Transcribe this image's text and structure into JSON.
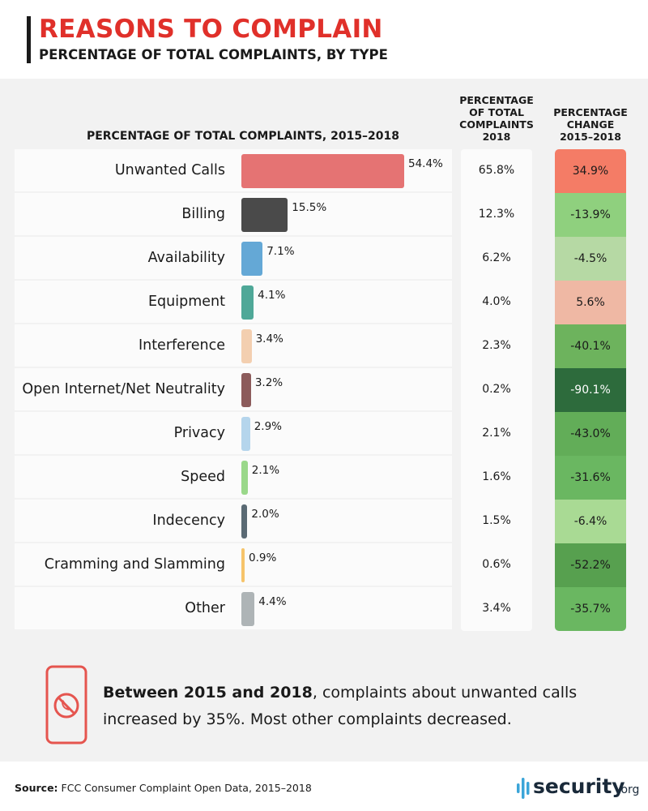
{
  "header": {
    "title": "REASONS TO COMPLAIN",
    "subtitle": "PERCENTAGE OF TOTAL COMPLAINTS, BY TYPE"
  },
  "columns": {
    "chart_header": "PERCENTAGE OF TOTAL COMPLAINTS, 2015–2018",
    "col_2018": [
      "PERCENTAGE",
      "OF TOTAL",
      "COMPLAINTS",
      "2018"
    ],
    "col_change": [
      "PERCENTAGE",
      "CHANGE",
      "2015–2018"
    ]
  },
  "chart_data": {
    "type": "bar",
    "orientation": "horizontal",
    "title": "PERCENTAGE OF TOTAL COMPLAINTS, 2015–2018",
    "categories": [
      "Unwanted Calls",
      "Billing",
      "Availability",
      "Equipment",
      "Interference",
      "Open Internet/Net Neutrality",
      "Privacy",
      "Speed",
      "Indecency",
      "Cramming and Slamming",
      "Other"
    ],
    "values": [
      54.4,
      15.5,
      7.1,
      4.1,
      3.4,
      3.2,
      2.9,
      2.1,
      2.0,
      0.9,
      4.4
    ],
    "value_labels": [
      "54.4%",
      "15.5%",
      "7.1%",
      "4.1%",
      "3.4%",
      "3.2%",
      "2.9%",
      "2.1%",
      "2.0%",
      "0.9%",
      "4.4%"
    ],
    "bar_colors": [
      "#e57373",
      "#4a4a4a",
      "#64a8d6",
      "#4fa898",
      "#f3cfb0",
      "#8c5b5b",
      "#b5d5ec",
      "#9ad88a",
      "#5a6a74",
      "#f6c46a",
      "#aeb4b6"
    ],
    "pct_2018": [
      "65.8%",
      "12.3%",
      "6.2%",
      "4.0%",
      "2.3%",
      "0.2%",
      "2.1%",
      "1.6%",
      "1.5%",
      "0.6%",
      "3.4%"
    ],
    "pct_change": [
      "34.9%",
      "-13.9%",
      "-4.5%",
      "5.6%",
      "-40.1%",
      "-90.1%",
      "-43.0%",
      "-31.6%",
      "-6.4%",
      "-52.2%",
      "-35.7%"
    ],
    "pct_change_values": [
      34.9,
      -13.9,
      -4.5,
      5.6,
      -40.1,
      -90.1,
      -43.0,
      -31.6,
      -6.4,
      -52.2,
      -35.7
    ],
    "change_colors": [
      "#f47c66",
      "#8fd07e",
      "#b6d9a4",
      "#efb8a4",
      "#6db35d",
      "#2d6b3c",
      "#62ad58",
      "#6ab761",
      "#a9da94",
      "#57a04f",
      "#6ab761"
    ]
  },
  "note": {
    "icon": "phone-blocked-icon",
    "bold": "Between 2015 and 2018",
    "text": ", complaints about unwanted calls increased by 35%. Most other complaints decreased."
  },
  "footer": {
    "source_label": "Source:",
    "source_text": " FCC Consumer Complaint Open Data, 2015–2018",
    "logo_name": "security",
    "logo_tld": ".org"
  },
  "colors": {
    "title": "#e0302a",
    "accent": "#e5554f"
  }
}
